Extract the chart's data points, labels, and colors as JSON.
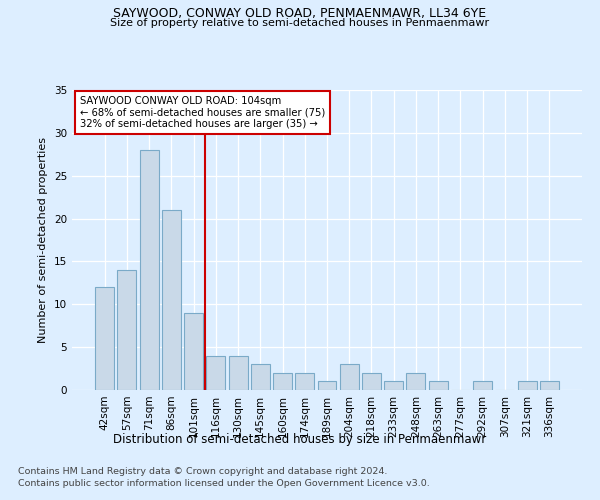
{
  "title": "SAYWOOD, CONWAY OLD ROAD, PENMAENMAWR, LL34 6YE",
  "subtitle": "Size of property relative to semi-detached houses in Penmaenmawr",
  "xlabel": "Distribution of semi-detached houses by size in Penmaenmawr",
  "ylabel": "Number of semi-detached properties",
  "categories": [
    "42sqm",
    "57sqm",
    "71sqm",
    "86sqm",
    "101sqm",
    "116sqm",
    "130sqm",
    "145sqm",
    "160sqm",
    "174sqm",
    "189sqm",
    "204sqm",
    "218sqm",
    "233sqm",
    "248sqm",
    "263sqm",
    "277sqm",
    "292sqm",
    "307sqm",
    "321sqm",
    "336sqm"
  ],
  "values": [
    12,
    14,
    28,
    21,
    9,
    4,
    4,
    3,
    2,
    2,
    1,
    3,
    2,
    1,
    2,
    1,
    0,
    1,
    0,
    1,
    1
  ],
  "bar_color": "#c9d9e8",
  "bar_edge_color": "#7aaac8",
  "vline_x": 4.5,
  "vline_color": "#cc0000",
  "annotation_line1": "SAYWOOD CONWAY OLD ROAD: 104sqm",
  "annotation_line2": "← 68% of semi-detached houses are smaller (75)",
  "annotation_line3": "32% of semi-detached houses are larger (35) →",
  "annotation_box_color": "#ffffff",
  "annotation_box_edge": "#cc0000",
  "ylim": [
    0,
    35
  ],
  "yticks": [
    0,
    5,
    10,
    15,
    20,
    25,
    30,
    35
  ],
  "footer1": "Contains HM Land Registry data © Crown copyright and database right 2024.",
  "footer2": "Contains public sector information licensed under the Open Government Licence v3.0.",
  "bg_color": "#ddeeff",
  "plot_bg_color": "#ddeeff"
}
